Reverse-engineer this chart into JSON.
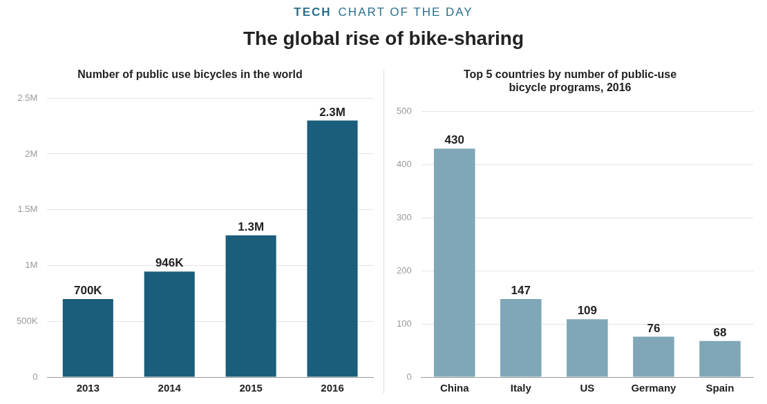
{
  "chart_data": [
    {
      "type": "bar",
      "title": "Number of public use bicycles in the world",
      "annotations": [
        "TECH",
        "CHART OF THE DAY",
        "The global rise of bike-sharing"
      ],
      "categories": [
        "2013",
        "2014",
        "2015",
        "2016"
      ],
      "values": [
        700000,
        946000,
        1270000,
        2300000
      ],
      "value_labels": [
        "700K",
        "946K",
        "1.3M",
        "2.3M"
      ],
      "color": "#1b5e7b",
      "ylim": [
        0,
        2500000
      ],
      "yticks": [
        0,
        {
          "value": 500000,
          "label": "500K"
        },
        {
          "value": 1000000,
          "label": "1M"
        },
        {
          "value": 1500000,
          "label": "1.5M"
        },
        {
          "value": 2000000,
          "label": "2M"
        },
        {
          "value": 2500000,
          "label": "2.5M"
        }
      ],
      "grid": "y"
    },
    {
      "type": "bar",
      "title": "Top 5 countries by number of public-use bicycle programs, 2016",
      "categories": [
        "China",
        "Italy",
        "US",
        "Germany",
        "Spain"
      ],
      "values": [
        430,
        147,
        109,
        76,
        68
      ],
      "data_labels": true,
      "color": "#7fa7b8",
      "ylim": [
        0,
        500
      ],
      "yticks": [
        0,
        100,
        200,
        300,
        400,
        500
      ],
      "grid": "y"
    }
  ]
}
